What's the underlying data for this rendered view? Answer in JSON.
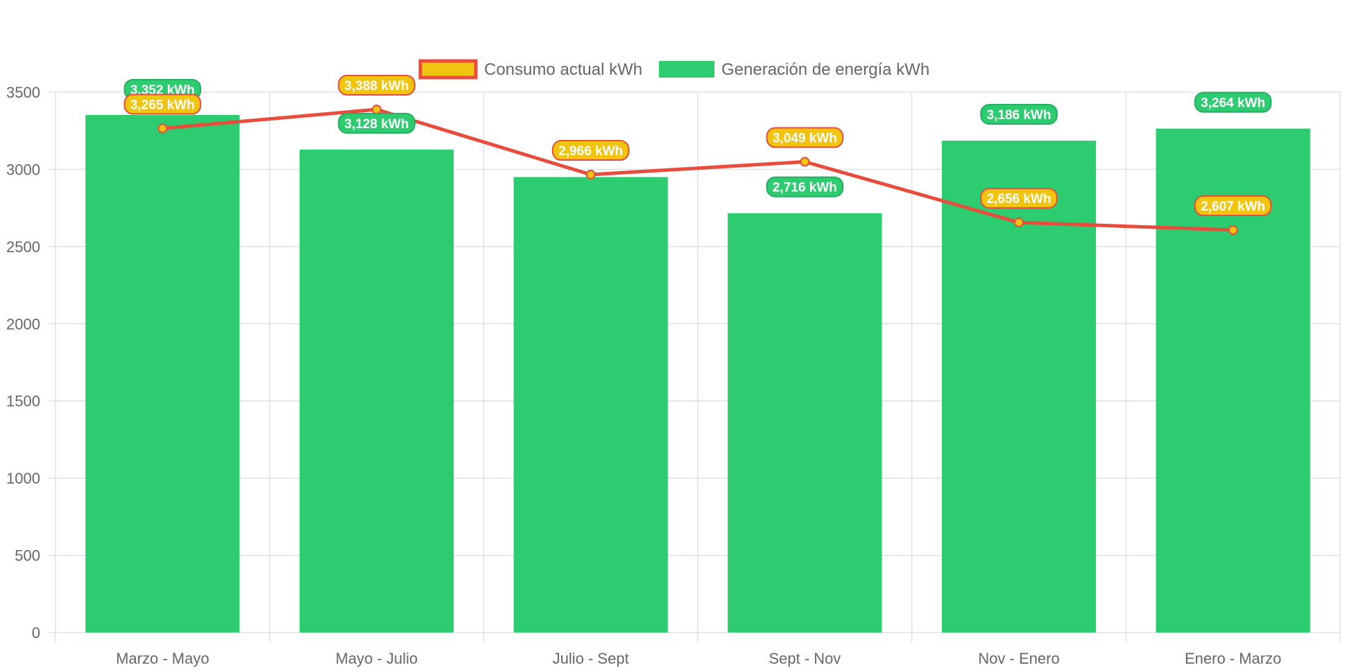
{
  "chart_data": {
    "type": "bar",
    "categories": [
      "Marzo - Mayo",
      "Mayo - Julio",
      "Julio - Sept",
      "Sept - Nov",
      "Nov - Enero",
      "Enero - Marzo"
    ],
    "series": [
      {
        "name": "Consumo actual kWh",
        "type": "line",
        "values": [
          3265,
          3388,
          2966,
          3049,
          2656,
          2607
        ],
        "labels": [
          "3,265 kWh",
          "3,388 kWh",
          "2,966 kWh",
          "3,049 kWh",
          "2,656 kWh",
          "2,607 kWh"
        ],
        "color": "#e74c3c",
        "point_color": "#f1c40f"
      },
      {
        "name": "Generación de energía kWh",
        "type": "bar",
        "values": [
          3352,
          3128,
          2950,
          2716,
          3186,
          3264
        ],
        "labels": [
          "3,352 kWh",
          "3,128 kWh",
          "",
          "2,716 kWh",
          "3,186 kWh",
          "3,264 kWh"
        ],
        "color": "#2ecc71"
      }
    ],
    "ylim": [
      0,
      3500
    ],
    "yticks": [
      "0",
      "500",
      "1000",
      "1500",
      "2000",
      "2500",
      "3000",
      "3500"
    ],
    "grid": true,
    "legend_position": "top-center"
  },
  "legend": {
    "line_label": "Consumo actual kWh",
    "bar_label": "Generación de energía kWh"
  }
}
